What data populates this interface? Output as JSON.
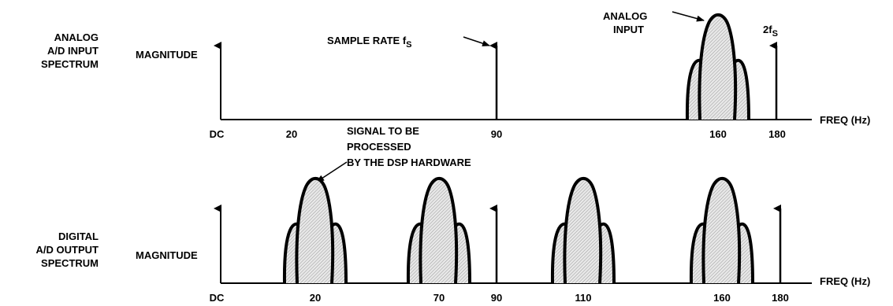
{
  "top_panel": {
    "title_lines": [
      "ANALOG",
      "A/D INPUT",
      "SPECTRUM"
    ],
    "y_label": "MAGNITUDE",
    "x_label": "FREQ (Hz)",
    "x_ticks": [
      "DC",
      "20",
      "90",
      "160",
      "180"
    ],
    "annotations": {
      "sample_rate": "SAMPLE RATE f",
      "sample_rate_sub": "S",
      "analog_input_lines": [
        "ANALOG",
        "INPUT"
      ],
      "two_fs": "2f",
      "two_fs_sub": "S"
    }
  },
  "bottom_panel": {
    "title_lines": [
      "DIGITAL",
      "A/D OUTPUT",
      "SPECTRUM"
    ],
    "y_label": "MAGNITUDE",
    "x_label": "FREQ (Hz)",
    "x_ticks": [
      "DC",
      "20",
      "70",
      "90",
      "110",
      "160",
      "180"
    ],
    "annotations": {
      "signal_lines": [
        "SIGNAL TO BE",
        "PROCESSED",
        "BY THE DSP HARDWARE"
      ]
    }
  }
}
